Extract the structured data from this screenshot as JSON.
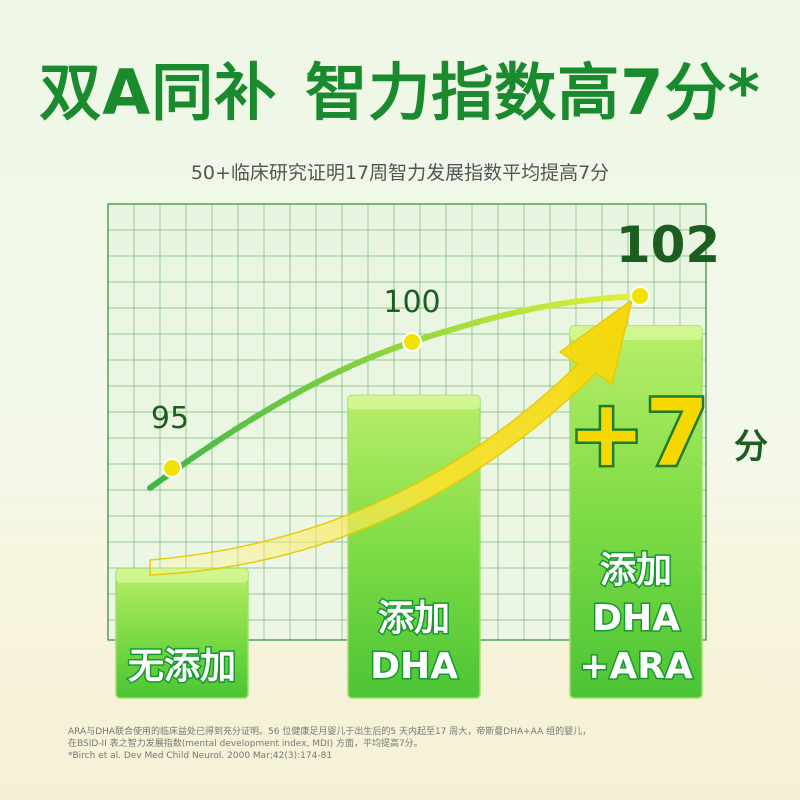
{
  "headline": {
    "part1": "双A同补",
    "part2": "智力指数高7分*"
  },
  "subtitle": "50+临床研究证明17周智力发展指数平均提高7分",
  "chart_data": {
    "type": "bar",
    "categories": [
      "无添加",
      "添加DHA",
      "添加DHA+ARA"
    ],
    "bar_label_lines": [
      [
        "无添加"
      ],
      [
        "添加",
        "DHA"
      ],
      [
        "添加",
        "DHA",
        "+ARA"
      ]
    ],
    "values": [
      95,
      100,
      102
    ],
    "value_labels": [
      "95",
      "100",
      "102"
    ],
    "highlight": {
      "text": "+7",
      "unit": "分"
    },
    "grid": true,
    "colors": {
      "bar": "#5fcf3f",
      "bar_light": "#c8f07a",
      "accent": "#f2dc00",
      "line": "#7ccb3a",
      "dot": "#f2e200"
    }
  },
  "footnote": {
    "line1": "ARA与DHA联合使用的临床益处已得到充分证明。56 位健康足月婴儿于出生后的5 天内起至17 周大，帝斯曼DHA+AA 组的婴儿，",
    "line2": "在BSID-II 表之智力发展指数(mental development index, MDI) 方面，平均提高7分。",
    "line3": "*Birch et al. Dev Med Child Neurol. 2000 Mar;42(3):174-81"
  }
}
